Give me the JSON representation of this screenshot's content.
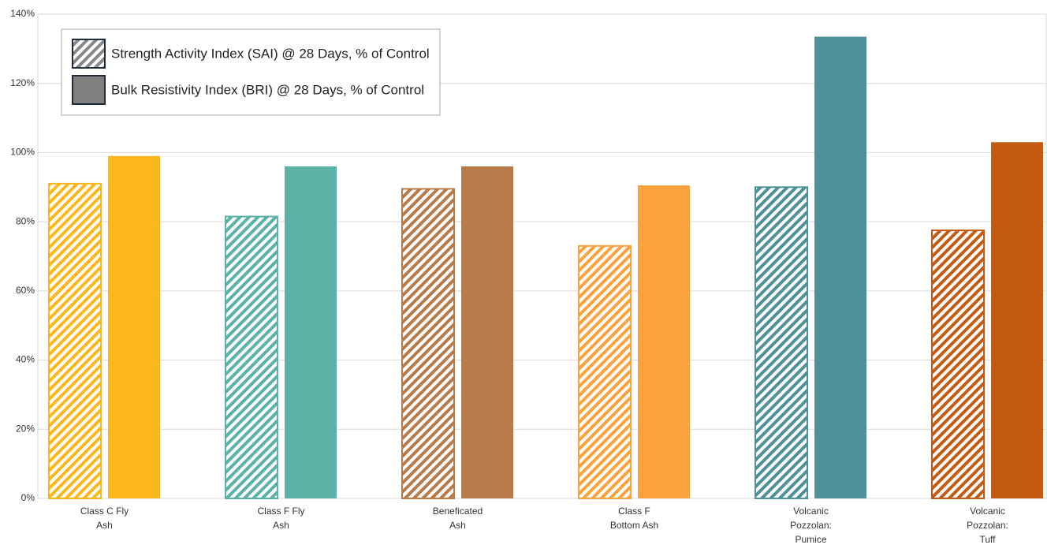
{
  "chart_data": {
    "type": "bar",
    "categories": [
      [
        "Class C Fly",
        "Ash"
      ],
      [
        "Class F Fly",
        "Ash"
      ],
      [
        "Beneficated",
        "Ash"
      ],
      [
        "Class F",
        "Bottom Ash"
      ],
      [
        "Volcanic",
        "Pozzolan:",
        "Pumice"
      ],
      [
        "Volcanic",
        "Pozzolan:",
        "Tuff"
      ]
    ],
    "category_colors": [
      "#fdb71e",
      "#5bb2a6",
      "#b87a48",
      "#fba23f",
      "#4e9199",
      "#c55a11"
    ],
    "series": [
      {
        "name": "Strength Activity Index (SAI) @ 28 Days, % of Control",
        "color": "#888888",
        "hatched": true,
        "values": [
          91,
          81.5,
          89.5,
          73,
          90,
          77.5
        ]
      },
      {
        "name": "Bulk Resistivity Index (BRI) @ 28 Days, % of Control",
        "color": "#808080",
        "hatched": false,
        "values": [
          99,
          96,
          96,
          90.5,
          133.5,
          103
        ]
      }
    ],
    "ylim": [
      0,
      140
    ],
    "yticks": [
      {
        "value": 0,
        "label": "0%"
      },
      {
        "value": 20,
        "label": "20%"
      },
      {
        "value": 40,
        "label": "40%"
      },
      {
        "value": 60,
        "label": "60%"
      },
      {
        "value": 80,
        "label": "80%"
      },
      {
        "value": 100,
        "label": "100%"
      },
      {
        "value": 120,
        "label": "120%"
      },
      {
        "value": 140,
        "label": "140%"
      }
    ],
    "grid": true,
    "legend": "top-left"
  }
}
